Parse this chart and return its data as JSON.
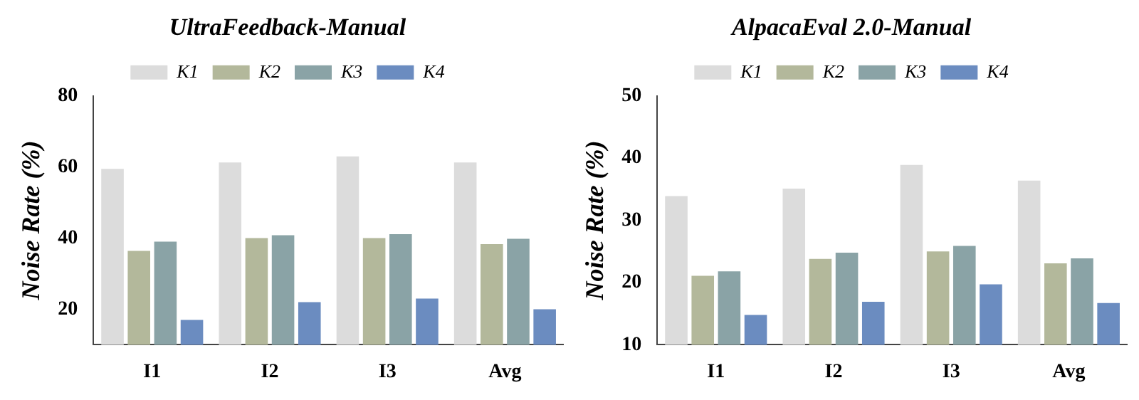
{
  "chart_data": [
    {
      "type": "bar",
      "title": "UltraFeedback-Manual",
      "ylabel": "Noise Rate (%)",
      "categories": [
        "I1",
        "I2",
        "I3",
        "Avg"
      ],
      "ylim": [
        10,
        80
      ],
      "yticks": [
        20,
        40,
        60,
        80
      ],
      "grid": false,
      "legend": "top",
      "series": [
        {
          "name": "K1",
          "color": "#dcdcdc",
          "values": [
            59.5,
            61.3,
            63,
            61.3
          ]
        },
        {
          "name": "K2",
          "color": "#b3b89b",
          "values": [
            36.4,
            40,
            40,
            38.3
          ]
        },
        {
          "name": "K3",
          "color": "#8aa3a6",
          "values": [
            39,
            40.8,
            41.1,
            39.8
          ]
        },
        {
          "name": "K4",
          "color": "#6b8cc0",
          "values": [
            17,
            22,
            23,
            20
          ]
        }
      ]
    },
    {
      "type": "bar",
      "title": "AlpacaEval 2.0-Manual",
      "ylabel": "Noise Rate (%)",
      "categories": [
        "I1",
        "I2",
        "I3",
        "Avg"
      ],
      "ylim": [
        10,
        50
      ],
      "yticks": [
        10,
        20,
        30,
        40,
        50
      ],
      "grid": false,
      "legend": "top",
      "series": [
        {
          "name": "K1",
          "color": "#dcdcdc",
          "values": [
            33.9,
            35.1,
            38.9,
            36.4
          ]
        },
        {
          "name": "K2",
          "color": "#b3b89b",
          "values": [
            21.1,
            23.8,
            25,
            23.1
          ]
        },
        {
          "name": "K3",
          "color": "#8aa3a6",
          "values": [
            21.8,
            24.8,
            25.9,
            23.9
          ]
        },
        {
          "name": "K4",
          "color": "#6b8cc0",
          "values": [
            14.8,
            16.9,
            19.7,
            16.7
          ]
        }
      ]
    }
  ]
}
